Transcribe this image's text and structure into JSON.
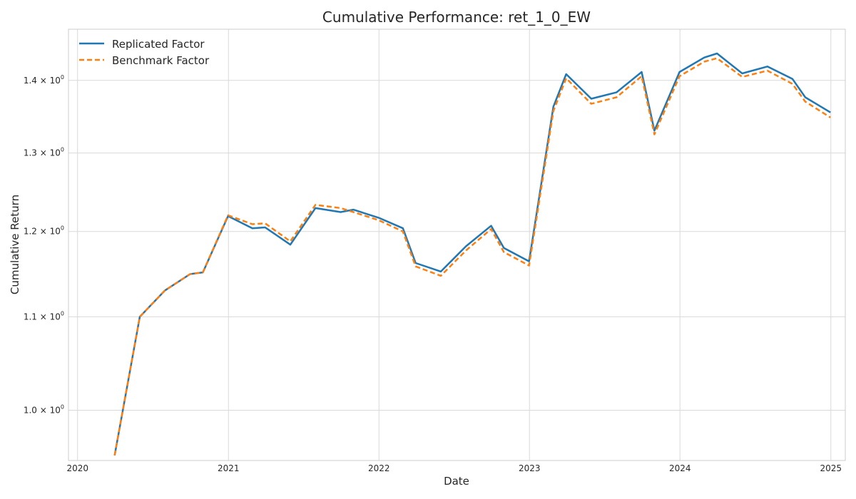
{
  "chart_data": {
    "type": "line",
    "title": "Cumulative Performance: ret_1_0_EW",
    "xlabel": "Date",
    "ylabel": "Cumulative Return",
    "y_scale": "log",
    "grid": true,
    "legend_placement": "top-left",
    "xlim": [
      "2019-12-10",
      "2025-02-05"
    ],
    "ylim": [
      0.95,
      1.475
    ],
    "x_ticks": [
      "2020",
      "2021",
      "2022",
      "2023",
      "2024",
      "2025"
    ],
    "y_ticks": [
      {
        "base": "1.0 × 10",
        "exp": "0",
        "value": 1.0
      },
      {
        "base": "1.1 × 10",
        "exp": "0",
        "value": 1.1
      },
      {
        "base": "1.2 × 10",
        "exp": "0",
        "value": 1.2
      },
      {
        "base": "1.3 × 10",
        "exp": "0",
        "value": 1.3
      },
      {
        "base": "1.4 × 10",
        "exp": "0",
        "value": 1.4
      }
    ],
    "x": [
      "2020-03-31",
      "2020-05-31",
      "2020-07-31",
      "2020-09-30",
      "2020-10-31",
      "2020-12-31",
      "2021-02-28",
      "2021-03-31",
      "2021-05-31",
      "2021-07-31",
      "2021-09-30",
      "2021-10-31",
      "2021-12-31",
      "2022-02-28",
      "2022-03-31",
      "2022-05-31",
      "2022-07-31",
      "2022-09-30",
      "2022-10-31",
      "2022-12-31",
      "2023-02-28",
      "2023-03-31",
      "2023-05-31",
      "2023-07-31",
      "2023-09-30",
      "2023-10-31",
      "2023-12-31",
      "2024-02-29",
      "2024-03-31",
      "2024-05-31",
      "2024-07-31",
      "2024-09-30",
      "2024-10-31",
      "2024-12-31"
    ],
    "series": [
      {
        "name": "Replicated Factor",
        "color": "#1f77b4",
        "style": "solid",
        "values": [
          0.955,
          1.1,
          1.13,
          1.149,
          1.151,
          1.219,
          1.204,
          1.205,
          1.184,
          1.229,
          1.224,
          1.227,
          1.217,
          1.204,
          1.162,
          1.152,
          1.182,
          1.207,
          1.18,
          1.164,
          1.363,
          1.409,
          1.374,
          1.383,
          1.412,
          1.33,
          1.412,
          1.433,
          1.439,
          1.41,
          1.42,
          1.402,
          1.376,
          1.355
        ]
      },
      {
        "name": "Benchmark Factor",
        "color": "#ff7f0e",
        "style": "dashed",
        "values": [
          0.955,
          1.1,
          1.13,
          1.149,
          1.151,
          1.22,
          1.209,
          1.21,
          1.188,
          1.233,
          1.229,
          1.224,
          1.214,
          1.2,
          1.158,
          1.147,
          1.177,
          1.203,
          1.175,
          1.159,
          1.357,
          1.403,
          1.367,
          1.376,
          1.406,
          1.325,
          1.406,
          1.427,
          1.432,
          1.405,
          1.414,
          1.395,
          1.37,
          1.348
        ]
      }
    ]
  }
}
